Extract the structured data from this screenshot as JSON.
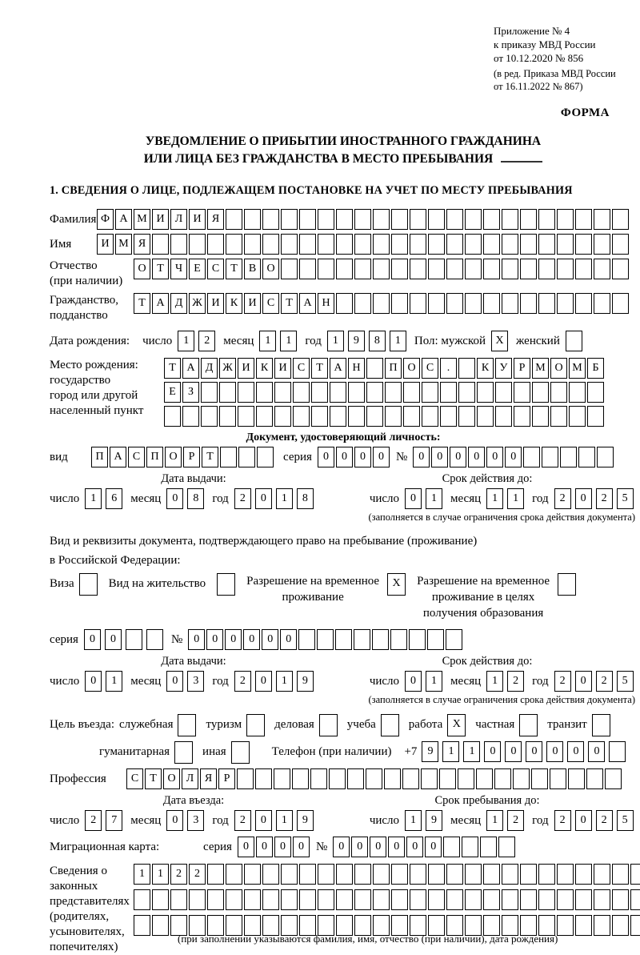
{
  "header": {
    "lines": [
      "Приложение № 4",
      "к приказу МВД России",
      "от 10.12.2020 № 856"
    ],
    "sub": [
      "(в ред. Приказа МВД России",
      "от 16.11.2022 № 867)"
    ],
    "forma": "ФОРМА"
  },
  "title": {
    "line1": "УВЕДОМЛЕНИЕ О ПРИБЫТИИ ИНОСТРАННОГО ГРАЖДАНИНА",
    "line2": "ИЛИ ЛИЦА БЕЗ ГРАЖДАНСТВА В МЕСТО ПРЕБЫВАНИЯ"
  },
  "section1": "1. СВЕДЕНИЯ О ЛИЦЕ, ПОДЛЕЖАЩЕМ ПОСТАНОВКЕ НА УЧЕТ ПО МЕСТУ ПРЕБЫВАНИЯ",
  "labels": {
    "lastname": "Фамилия",
    "firstname": "Имя",
    "patronymic1": "Отчество",
    "patronymic2": "(при наличии)",
    "citizenship1": "Гражданство,",
    "citizenship2": "подданство",
    "birthdate": "Дата рождения:",
    "day": "число",
    "month": "месяц",
    "year": "год",
    "sex_male": "Пол: мужской",
    "sex_female": "женский",
    "birthplace1": "Место рождения:",
    "birthplace2": "государство",
    "birthplace3": "город или другой",
    "birthplace4": "населенный пункт",
    "doc_header": "Документ, удостоверяющий личность:",
    "vid": "вид",
    "seriya": "серия",
    "num": "№",
    "issue_date": "Дата выдачи:",
    "valid_until": "Срок действия до:",
    "residence1": "Вид и реквизиты документа, подтверждающего право на пребывание (проживание)",
    "residence2": "в Российской Федерации:",
    "visa": "Виза",
    "vnz": "Вид на жительство",
    "rvp1": "Разрешение на временное",
    "rvp2": "проживание",
    "rvpo1": "Разрешение на временное",
    "rvpo2": "проживание в целях",
    "rvpo3": "получения образования",
    "purpose": "Цель въезда:",
    "sluzhebnaya": "служебная",
    "turizm": "туризм",
    "delovaya": "деловая",
    "ucheba": "учеба",
    "rabota": "работа",
    "chastnaya": "частная",
    "tranzit": "транзит",
    "gumanitarnaya": "гуманитарная",
    "inaya": "иная",
    "phone": "Телефон (при наличии)",
    "plus7": "+7",
    "profession": "Профессия",
    "entry_date": "Дата въезда:",
    "stay_until": "Срок пребывания до:",
    "mig_card": "Миграционная карта:",
    "legal1": "Сведения о",
    "legal2": "законных",
    "legal3": "представителях",
    "legal4": "(родителях,",
    "legal5": "усыновителях,",
    "legal6": "попечителях)"
  },
  "notes": {
    "validity": "(заполняется в случае ограничения срока действия документа)",
    "legal": "(при заполнении указываются фамилия, имя, отчество (при наличии), дата рождения)"
  },
  "cells": {
    "lastname": {
      "value": "ФАМИЛИЯ",
      "count": 29
    },
    "firstname": {
      "value": "ИМЯ",
      "count": 29
    },
    "patronymic": {
      "value": "ОТЧЕСТВО",
      "count": 27
    },
    "citizenship": {
      "value": "ТАДЖИКИСТАН",
      "count": 27
    },
    "birth_day": {
      "value": "12",
      "count": 2
    },
    "birth_month": {
      "value": "11",
      "count": 2
    },
    "birth_year": {
      "value": "1981",
      "count": 4
    },
    "sex_male": {
      "value": "X",
      "count": 1
    },
    "sex_female": {
      "value": "",
      "count": 1
    },
    "birthplace_row1": {
      "value": "ТАДЖИКИСТАН ПОС. КУРМОМБ",
      "count": 24
    },
    "birthplace_row2": {
      "value": "ЕЗ",
      "count": 24
    },
    "birthplace_row3": {
      "value": "",
      "count": 24
    },
    "id_type": {
      "value": "ПАСПОРТ",
      "count": 10
    },
    "id_series": {
      "value": "0000",
      "count": 4
    },
    "id_number": {
      "value": "000000",
      "count": 11
    },
    "id_issue_day": {
      "value": "16",
      "count": 2
    },
    "id_issue_month": {
      "value": "08",
      "count": 2
    },
    "id_issue_year": {
      "value": "2018",
      "count": 4
    },
    "id_valid_day": {
      "value": "01",
      "count": 2
    },
    "id_valid_month": {
      "value": "11",
      "count": 2
    },
    "id_valid_year": {
      "value": "2025",
      "count": 4
    },
    "cb_visa": {
      "value": "",
      "count": 1
    },
    "cb_vnz": {
      "value": "",
      "count": 1
    },
    "cb_rvp": {
      "value": "X",
      "count": 1
    },
    "cb_rvp_edu": {
      "value": "",
      "count": 1
    },
    "res_series": {
      "value": "00",
      "count": 4
    },
    "res_number": {
      "value": "000000",
      "count": 15
    },
    "res_issue_day": {
      "value": "01",
      "count": 2
    },
    "res_issue_month": {
      "value": "03",
      "count": 2
    },
    "res_issue_year": {
      "value": "2019",
      "count": 4
    },
    "res_valid_day": {
      "value": "01",
      "count": 2
    },
    "res_valid_month": {
      "value": "12",
      "count": 2
    },
    "res_valid_year": {
      "value": "2025",
      "count": 4
    },
    "cb_sluzhebnaya": {
      "value": "",
      "count": 1
    },
    "cb_turizm": {
      "value": "",
      "count": 1
    },
    "cb_delovaya": {
      "value": "",
      "count": 1
    },
    "cb_ucheba": {
      "value": "",
      "count": 1
    },
    "cb_rabota": {
      "value": "X",
      "count": 1
    },
    "cb_chastnaya": {
      "value": "",
      "count": 1
    },
    "cb_tranzit": {
      "value": "",
      "count": 1
    },
    "cb_gumanitarnaya": {
      "value": "",
      "count": 1
    },
    "cb_inaya": {
      "value": "",
      "count": 1
    },
    "phone": {
      "value": "911000000",
      "count": 10
    },
    "profession": {
      "value": "СТОЛЯР",
      "count": 27
    },
    "entry_day": {
      "value": "27",
      "count": 2
    },
    "entry_month": {
      "value": "03",
      "count": 2
    },
    "entry_year": {
      "value": "2019",
      "count": 4
    },
    "stay_day": {
      "value": "19",
      "count": 2
    },
    "stay_month": {
      "value": "12",
      "count": 2
    },
    "stay_year": {
      "value": "2025",
      "count": 4
    },
    "mig_series": {
      "value": "0000",
      "count": 4
    },
    "mig_number": {
      "value": "000000",
      "count": 10
    },
    "legal_row1": {
      "value": "1122",
      "count": 28
    },
    "legal_row2": {
      "value": "",
      "count": 28
    },
    "legal_row3": {
      "value": "",
      "count": 28
    }
  }
}
